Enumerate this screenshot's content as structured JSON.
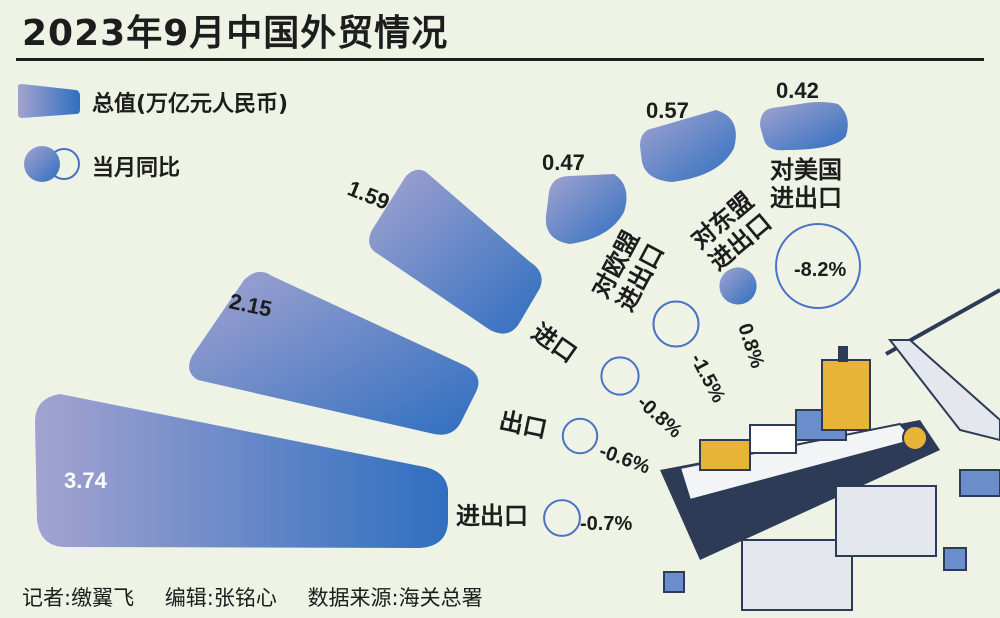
{
  "title": "2023年9月中国外贸情况",
  "legend": {
    "total_label": "总值(万亿元人民币)",
    "yoy_label": "当月同比"
  },
  "chart_data": {
    "type": "bar",
    "title": "2023年9月中国外贸情况",
    "series": [
      {
        "name": "总值(万亿元人民币)",
        "categories": [
          "进出口",
          "出口",
          "进口",
          "对欧盟\n进出口",
          "对东盟\n进出口",
          "对美国\n进出口"
        ],
        "values": [
          3.74,
          2.15,
          1.59,
          0.47,
          0.57,
          0.42
        ]
      },
      {
        "name": "当月同比",
        "categories": [
          "进出口",
          "出口",
          "进口",
          "对欧盟\n进出口",
          "对东盟\n进出口",
          "对美国\n进出口"
        ],
        "values_pct": [
          -0.7,
          -0.6,
          -0.8,
          -1.5,
          0.8,
          -8.2
        ]
      }
    ],
    "value_labels": [
      "3.74",
      "2.15",
      "1.59",
      "0.47",
      "0.57",
      "0.42"
    ],
    "pct_labels": [
      "-0.7%",
      "-0.6%",
      "-0.8%",
      "-1.5%",
      "0.8%",
      "-8.2%"
    ]
  },
  "footer": {
    "reporter": "记者:缴翼飞",
    "editor": "编辑:张铭心",
    "source": "数据来源:海关总署"
  },
  "colors": {
    "bar_start": "#9393c6",
    "bar_end": "#2f6fc0",
    "background": "#eef3e6",
    "circle_stroke": "#4a72c4"
  }
}
